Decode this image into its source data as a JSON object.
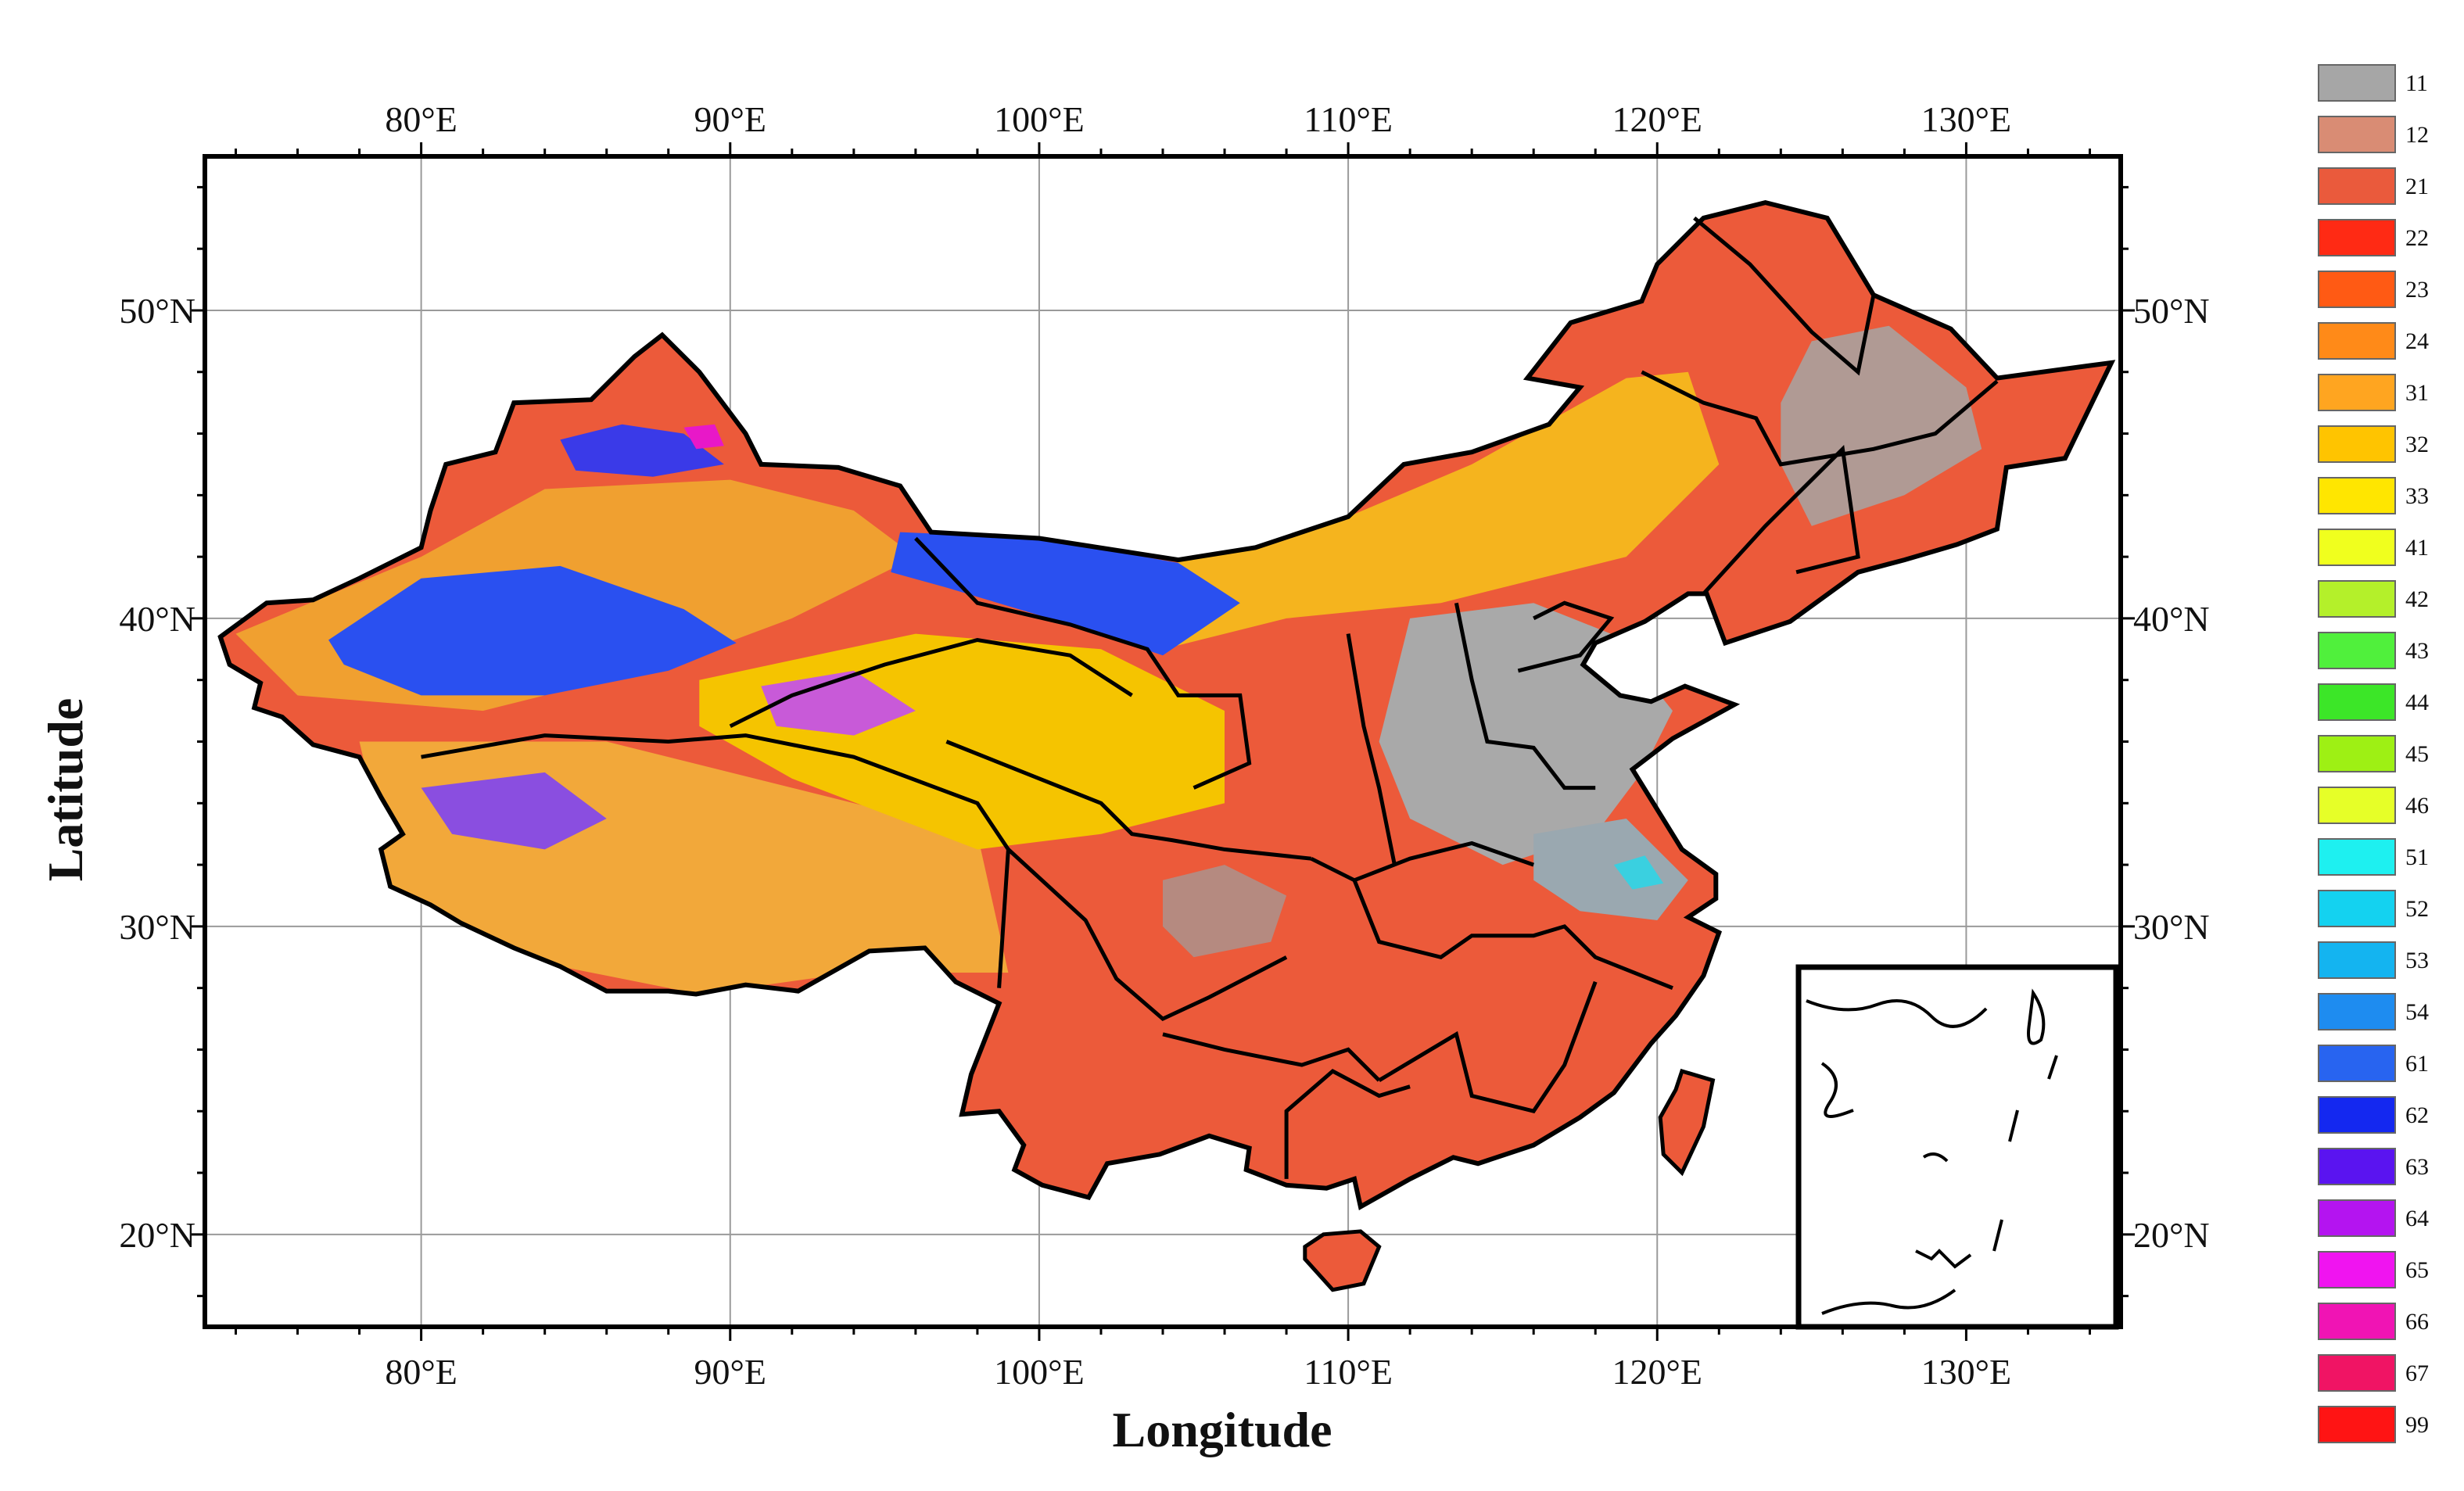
{
  "map": {
    "xlabel": "Longitude",
    "ylabel": "Latitude",
    "x_ticks": [
      "80°E",
      "90°E",
      "100°E",
      "110°E",
      "120°E",
      "130°E"
    ],
    "y_ticks": [
      "50°N",
      "40°N",
      "30°N",
      "20°N"
    ],
    "lon_range": [
      73,
      135
    ],
    "lat_range": [
      17,
      55
    ],
    "grid": true,
    "inset": "South China Sea islands (bottom-right)",
    "colors": {
      "desert_blue": "#2a50f0",
      "grassland_yellow": "#f5c400",
      "cropland_red": "#ec5a3a",
      "urban_gray": "#a9a9a9",
      "border": "#000000"
    }
  },
  "legend": {
    "items": [
      {
        "code": "11",
        "color": "#a6a6a6"
      },
      {
        "code": "12",
        "color": "#d98c74"
      },
      {
        "code": "21",
        "color": "#ea5a3c"
      },
      {
        "code": "22",
        "color": "#ff2a14"
      },
      {
        "code": "23",
        "color": "#ff5a14"
      },
      {
        "code": "24",
        "color": "#ff8a18"
      },
      {
        "code": "31",
        "color": "#ffa520"
      },
      {
        "code": "32",
        "color": "#ffc400"
      },
      {
        "code": "33",
        "color": "#ffe600"
      },
      {
        "code": "41",
        "color": "#f0ff1e"
      },
      {
        "code": "42",
        "color": "#b4f02a"
      },
      {
        "code": "43",
        "color": "#50f03c"
      },
      {
        "code": "44",
        "color": "#3ce628"
      },
      {
        "code": "45",
        "color": "#9ef014"
      },
      {
        "code": "46",
        "color": "#e6ff28"
      },
      {
        "code": "51",
        "color": "#1ef0f0"
      },
      {
        "code": "52",
        "color": "#14d2f0"
      },
      {
        "code": "53",
        "color": "#14b4f0"
      },
      {
        "code": "54",
        "color": "#1e8cf0"
      },
      {
        "code": "61",
        "color": "#2864f0"
      },
      {
        "code": "62",
        "color": "#1428f0"
      },
      {
        "code": "63",
        "color": "#5a14f0"
      },
      {
        "code": "64",
        "color": "#b414f0"
      },
      {
        "code": "65",
        "color": "#f014f0"
      },
      {
        "code": "66",
        "color": "#f014b4"
      },
      {
        "code": "67",
        "color": "#f01464"
      },
      {
        "code": "99",
        "color": "#ff1414"
      }
    ]
  }
}
